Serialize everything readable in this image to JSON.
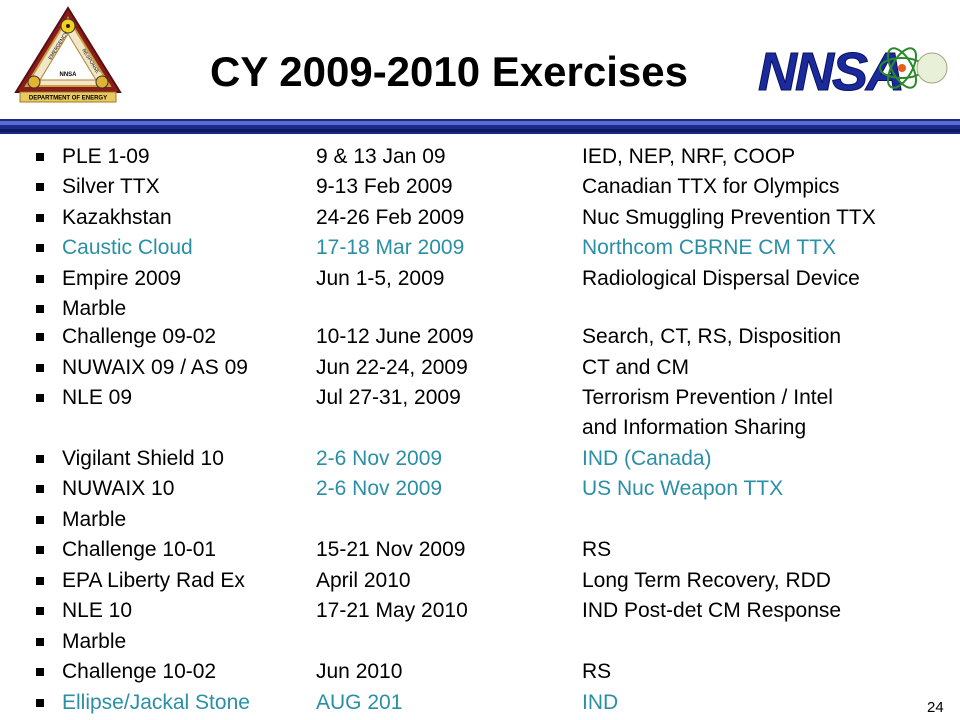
{
  "title": "CY 2009-2010 Exercises",
  "emblem": {
    "top_text": "EMERGENCY",
    "side_text": "RESPONSE",
    "center_text": "NNSA",
    "ribbon_text": "DEPARTMENT OF ENERGY"
  },
  "logo_text": "NNSA",
  "colors": {
    "highlight": "#2a8fa6",
    "rule": "#1a2a8a"
  },
  "rows": [
    {
      "c1": "PLE 1-09",
      "c2": "9 & 13 Jan 09",
      "c3": "IED, NEP, NRF, COOP"
    },
    {
      "c1": "Silver TTX",
      "c2": "9-13 Feb 2009",
      "c3": "Canadian TTX for Olympics"
    },
    {
      "c1": "Kazakhstan",
      "c2": "24-26 Feb 2009",
      "c3": "Nuc Smuggling Prevention TTX"
    },
    {
      "c1": "Caustic Cloud",
      "c2": "17-18 Mar 2009",
      "c3": "Northcom CBRNE CM TTX"
    },
    {
      "c1": "Empire 2009",
      "c2": "Jun 1-5, 2009",
      "c3": "Radiological Dispersal Device"
    },
    {
      "c1": "Marble"
    },
    {
      "c1": "Challenge 09-02",
      "c2": "10-12 June 2009",
      "c3": "Search, CT, RS, Disposition"
    },
    {
      "c1": "NUWAIX 09 / AS 09",
      "c2": "Jun 22-24, 2009",
      "c3": "CT and CM"
    },
    {
      "c1": "NLE 09",
      "c2": "Jul 27-31, 2009",
      "c3": "Terrorism Prevention / Intel"
    },
    {
      "c3": "and Information Sharing"
    },
    {
      "c1": "Vigilant Shield 10",
      "c2": "2-6 Nov 2009",
      "c3": "IND (Canada)"
    },
    {
      "c1": "NUWAIX 10",
      "c2": "2-6 Nov 2009",
      "c3": "US Nuc Weapon TTX"
    },
    {
      "c1": "Marble"
    },
    {
      "c1": "Challenge 10-01",
      "c2": "15-21 Nov 2009",
      "c3": "RS"
    },
    {
      "c1": "EPA Liberty Rad Ex",
      "c2": "April 2010",
      "c3": "Long Term Recovery, RDD"
    },
    {
      "c1": "NLE 10",
      "c2": "17-21 May 2010",
      "c3": "IND Post-det CM Response"
    },
    {
      "c1": "Marble"
    },
    {
      "c1": "Challenge 10-02",
      "c2": "Jun 2010",
      "c3": "RS"
    },
    {
      "c1": "Ellipse/Jackal Stone",
      "c2": " AUG 201",
      "c3": "IND"
    }
  ],
  "page_number": "24"
}
